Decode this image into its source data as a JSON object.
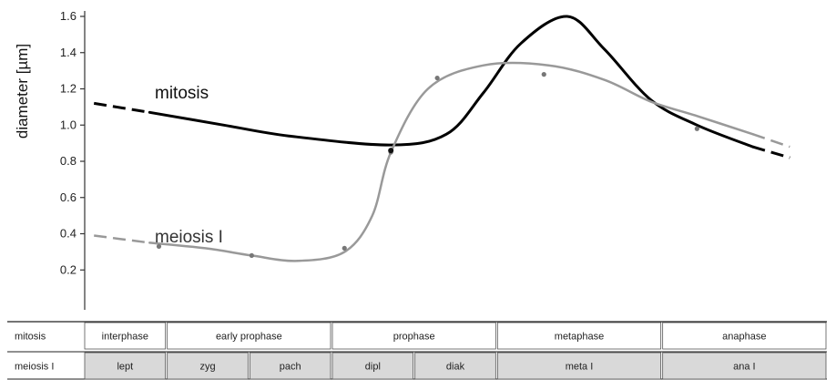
{
  "chart_data": {
    "type": "line",
    "title": "",
    "xlabel": "",
    "ylabel": "diameter [µm]",
    "ylim": [
      0,
      1.6
    ],
    "yticks": [
      "0.2",
      "0.4",
      "0.6",
      "0.8",
      "1.0",
      "1.2",
      "1.4",
      "1.6"
    ],
    "grid": false,
    "series": [
      {
        "name": "mitosis",
        "color": "#000000",
        "x": [
          0.1,
          0.7,
          1.5,
          2.2,
          3.3,
          3.9,
          4.3,
          4.7,
          5.2,
          5.6,
          6.1,
          6.6,
          7.2,
          7.6
        ],
        "y": [
          1.12,
          1.07,
          1.0,
          0.94,
          0.89,
          0.95,
          1.18,
          1.45,
          1.6,
          1.42,
          1.14,
          1.0,
          0.88,
          0.82
        ],
        "dashed_start": true,
        "dashed_end": true
      },
      {
        "name": "meiosis I",
        "color": "#999999",
        "x": [
          0.1,
          0.7,
          1.3,
          1.8,
          2.3,
          2.8,
          3.1,
          3.3,
          3.7,
          4.3,
          5.0,
          5.6,
          6.1,
          6.6,
          7.2,
          7.6
        ],
        "y": [
          0.39,
          0.35,
          0.32,
          0.28,
          0.25,
          0.3,
          0.5,
          0.85,
          1.2,
          1.33,
          1.33,
          1.25,
          1.13,
          1.05,
          0.95,
          0.88
        ],
        "markers": [
          [
            0.8,
            0.33
          ],
          [
            1.8,
            0.28
          ],
          [
            2.8,
            0.32
          ],
          [
            3.3,
            0.85
          ],
          [
            3.8,
            1.26
          ],
          [
            4.95,
            1.28
          ],
          [
            6.6,
            0.98
          ]
        ],
        "dashed_start": true,
        "dashed_end": true
      }
    ],
    "stage_table": {
      "rows": [
        {
          "label": "mitosis",
          "cells": [
            {
              "text": "interphase",
              "from": 0,
              "to": 1
            },
            {
              "text": "early prophase",
              "from": 1,
              "to": 3
            },
            {
              "text": "prophase",
              "from": 3,
              "to": 5
            },
            {
              "text": "metaphase",
              "from": 5,
              "to": 7
            },
            {
              "text": "anaphase",
              "from": 7,
              "to": 9
            }
          ]
        },
        {
          "label": "meiosis I",
          "cells": [
            {
              "text": "lept",
              "from": 0,
              "to": 1
            },
            {
              "text": "zyg",
              "from": 1,
              "to": 2
            },
            {
              "text": "pach",
              "from": 2,
              "to": 3
            },
            {
              "text": "dipl",
              "from": 3,
              "to": 4
            },
            {
              "text": "diak",
              "from": 4,
              "to": 5
            },
            {
              "text": "meta I",
              "from": 5,
              "to": 7
            },
            {
              "text": "ana I",
              "from": 7,
              "to": 9
            }
          ]
        }
      ]
    }
  }
}
